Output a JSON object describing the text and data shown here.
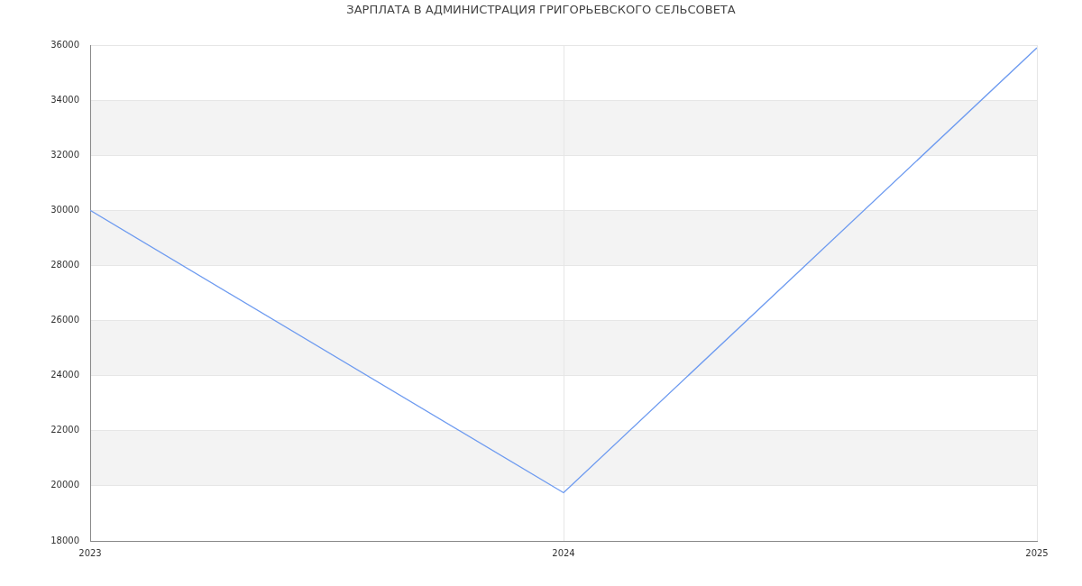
{
  "chart_data": {
    "type": "line",
    "title": "ЗАРПЛАТА В АДМИНИСТРАЦИЯ ГРИГОРЬЕВСКОГО СЕЛЬСОВЕТА",
    "x": [
      2023,
      2024,
      2025
    ],
    "values": [
      30000,
      19750,
      35900
    ],
    "color": "#6e9bf0",
    "xlim": [
      2023,
      2025
    ],
    "xticks": [
      2023,
      2024,
      2025
    ],
    "ylim": [
      18000,
      36000
    ],
    "yticks": [
      18000,
      20000,
      22000,
      24000,
      26000,
      28000,
      30000,
      32000,
      34000,
      36000
    ],
    "grid": true
  }
}
